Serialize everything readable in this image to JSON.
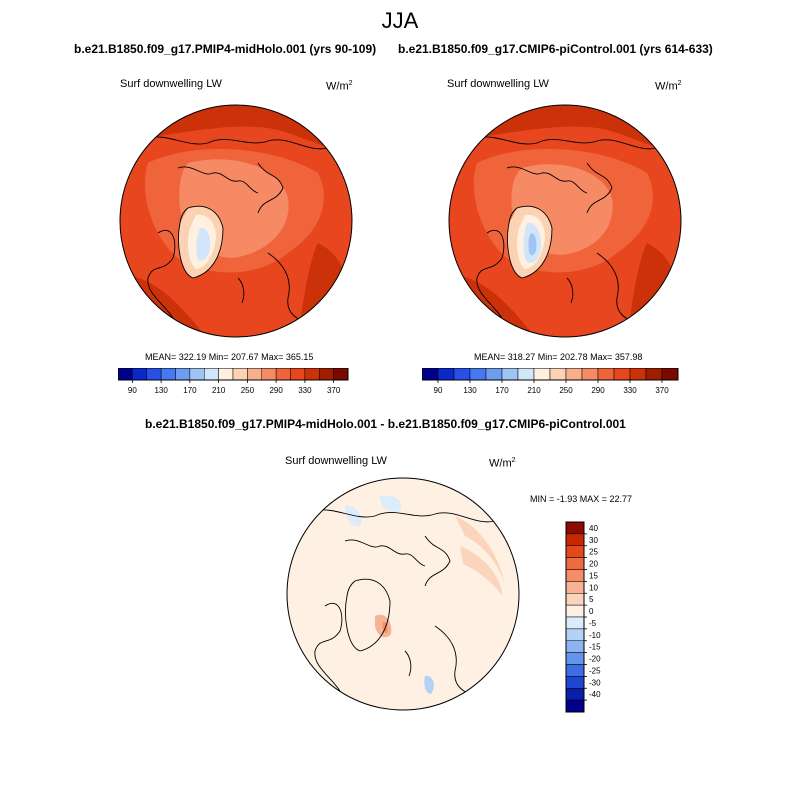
{
  "figure": {
    "season": "JJA"
  },
  "panels": [
    {
      "title": "b.e21.B1850.f09_g17.PMIP4-midHolo.001 (yrs 90-109)",
      "variable": "Surf downwelling LW",
      "units_base": "W/m",
      "units_exp": "2",
      "stats": "MEAN= 322.19  Min= 207.67  Max= 365.15"
    },
    {
      "title": "b.e21.B1850.f09_g17.CMIP6-piControl.001 (yrs 614-633)",
      "variable": "Surf downwelling LW",
      "units_base": "W/m",
      "units_exp": "2",
      "stats": "MEAN= 318.27  Min= 202.78  Max= 357.98"
    }
  ],
  "diff_panel": {
    "title": "b.e21.B1850.f09_g17.PMIP4-midHolo.001 - b.e21.B1850.f09_g17.CMIP6-piControl.001",
    "variable": "Surf downwelling LW",
    "units_base": "W/m",
    "units_exp": "2",
    "stats": "MIN =  -1.93 MAX =  22.77"
  },
  "chart_data": [
    {
      "type": "heatmap",
      "projection": "north polar stereographic",
      "title": "b.e21.B1850.f09_g17.PMIP4-midHolo.001 (yrs 90-109)",
      "variable": "Surf downwelling LW",
      "units": "W/m2",
      "mean": 322.19,
      "min": 207.67,
      "max": 365.15,
      "colorbar_ticks": [
        90,
        130,
        170,
        210,
        250,
        290,
        330,
        370
      ],
      "colorbar_colors": [
        "#00008c",
        "#0c28c8",
        "#2850e6",
        "#4678f0",
        "#6e9ef0",
        "#a0c4f4",
        "#d2e6fa",
        "#fff0e0",
        "#fcd2b4",
        "#f8b08c",
        "#f58a64",
        "#f0643c",
        "#e8461e",
        "#cc320a",
        "#a01e00",
        "#780a00"
      ]
    },
    {
      "type": "heatmap",
      "projection": "north polar stereographic",
      "title": "b.e21.B1850.f09_g17.CMIP6-piControl.001 (yrs 614-633)",
      "variable": "Surf downwelling LW",
      "units": "W/m2",
      "mean": 318.27,
      "min": 202.78,
      "max": 357.98,
      "colorbar_ticks": [
        90,
        130,
        170,
        210,
        250,
        290,
        330,
        370
      ],
      "colorbar_colors": [
        "#00008c",
        "#0c28c8",
        "#2850e6",
        "#4678f0",
        "#6e9ef0",
        "#a0c4f4",
        "#d2e6fa",
        "#fff0e0",
        "#fcd2b4",
        "#f8b08c",
        "#f58a64",
        "#f0643c",
        "#e8461e",
        "#cc320a",
        "#a01e00",
        "#780a00"
      ]
    },
    {
      "type": "heatmap",
      "projection": "north polar stereographic",
      "title": "b.e21.B1850.f09_g17.PMIP4-midHolo.001 - b.e21.B1850.f09_g17.CMIP6-piControl.001",
      "variable": "Surf downwelling LW",
      "units": "W/m2",
      "min": -1.93,
      "max": 22.77,
      "colorbar_ticks": [
        40,
        30,
        25,
        20,
        15,
        10,
        5,
        0,
        -5,
        -10,
        -15,
        -20,
        -25,
        -30,
        -40
      ],
      "colorbar_colors": [
        "#8c0a00",
        "#c82800",
        "#e24a1e",
        "#f06a40",
        "#f58e68",
        "#f8b294",
        "#fbd4bc",
        "#fff0e4",
        "#dcecfa",
        "#b4d2f6",
        "#8cb4f0",
        "#6494ec",
        "#3c6ee6",
        "#1e46d2",
        "#0a1eaa",
        "#00008c"
      ]
    }
  ]
}
